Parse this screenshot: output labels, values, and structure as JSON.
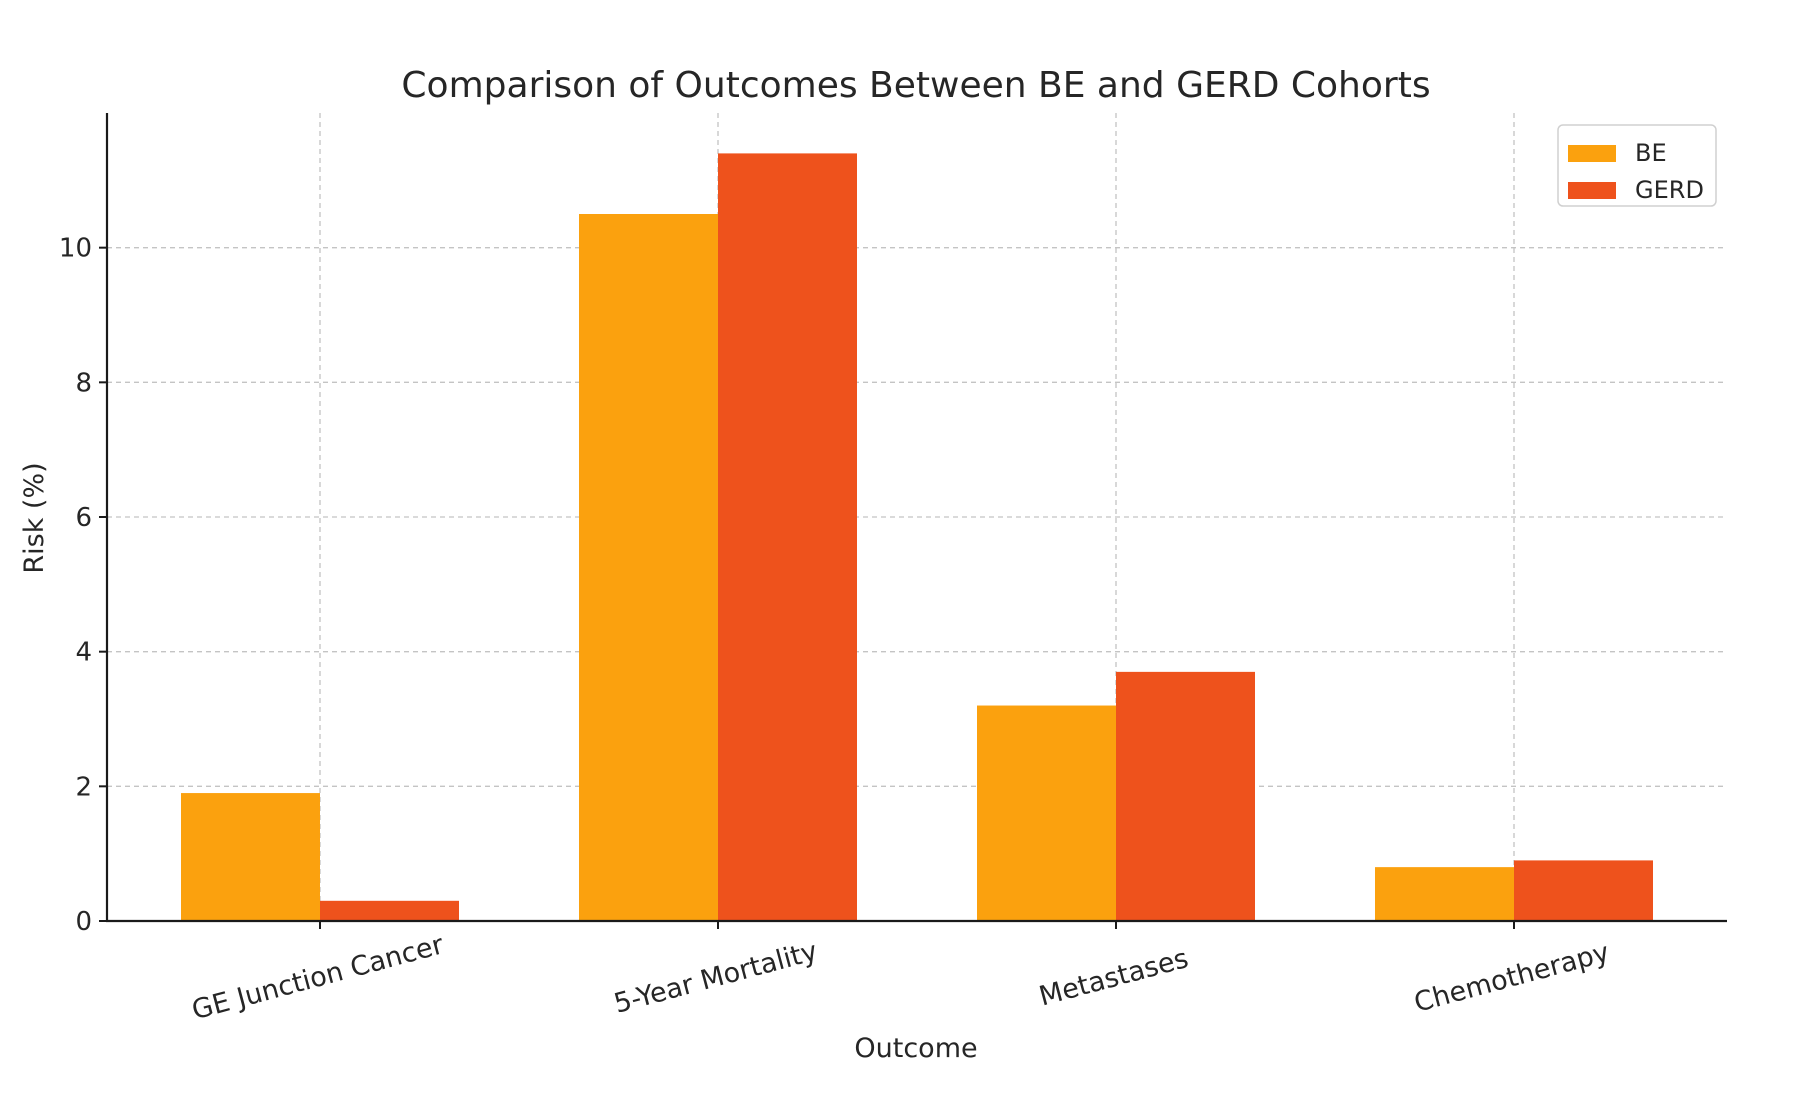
{
  "chart_data": {
    "type": "bar",
    "title": "Comparison of Outcomes Between BE and GERD Cohorts",
    "xlabel": "Outcome",
    "ylabel": "Risk (%)",
    "categories": [
      "GE Junction Cancer",
      "5-Year Mortality",
      "Metastases",
      "Chemotherapy"
    ],
    "series": [
      {
        "name": "BE",
        "color": "#fba10e",
        "values": [
          1.9,
          10.5,
          3.2,
          0.8
        ]
      },
      {
        "name": "GERD",
        "color": "#ee521c",
        "values": [
          0.3,
          11.4,
          3.7,
          0.9
        ]
      }
    ],
    "ylim": [
      0,
      12
    ],
    "yticks": [
      0,
      2,
      4,
      6,
      8,
      10
    ],
    "grid": true,
    "legend_position": "top-right"
  }
}
